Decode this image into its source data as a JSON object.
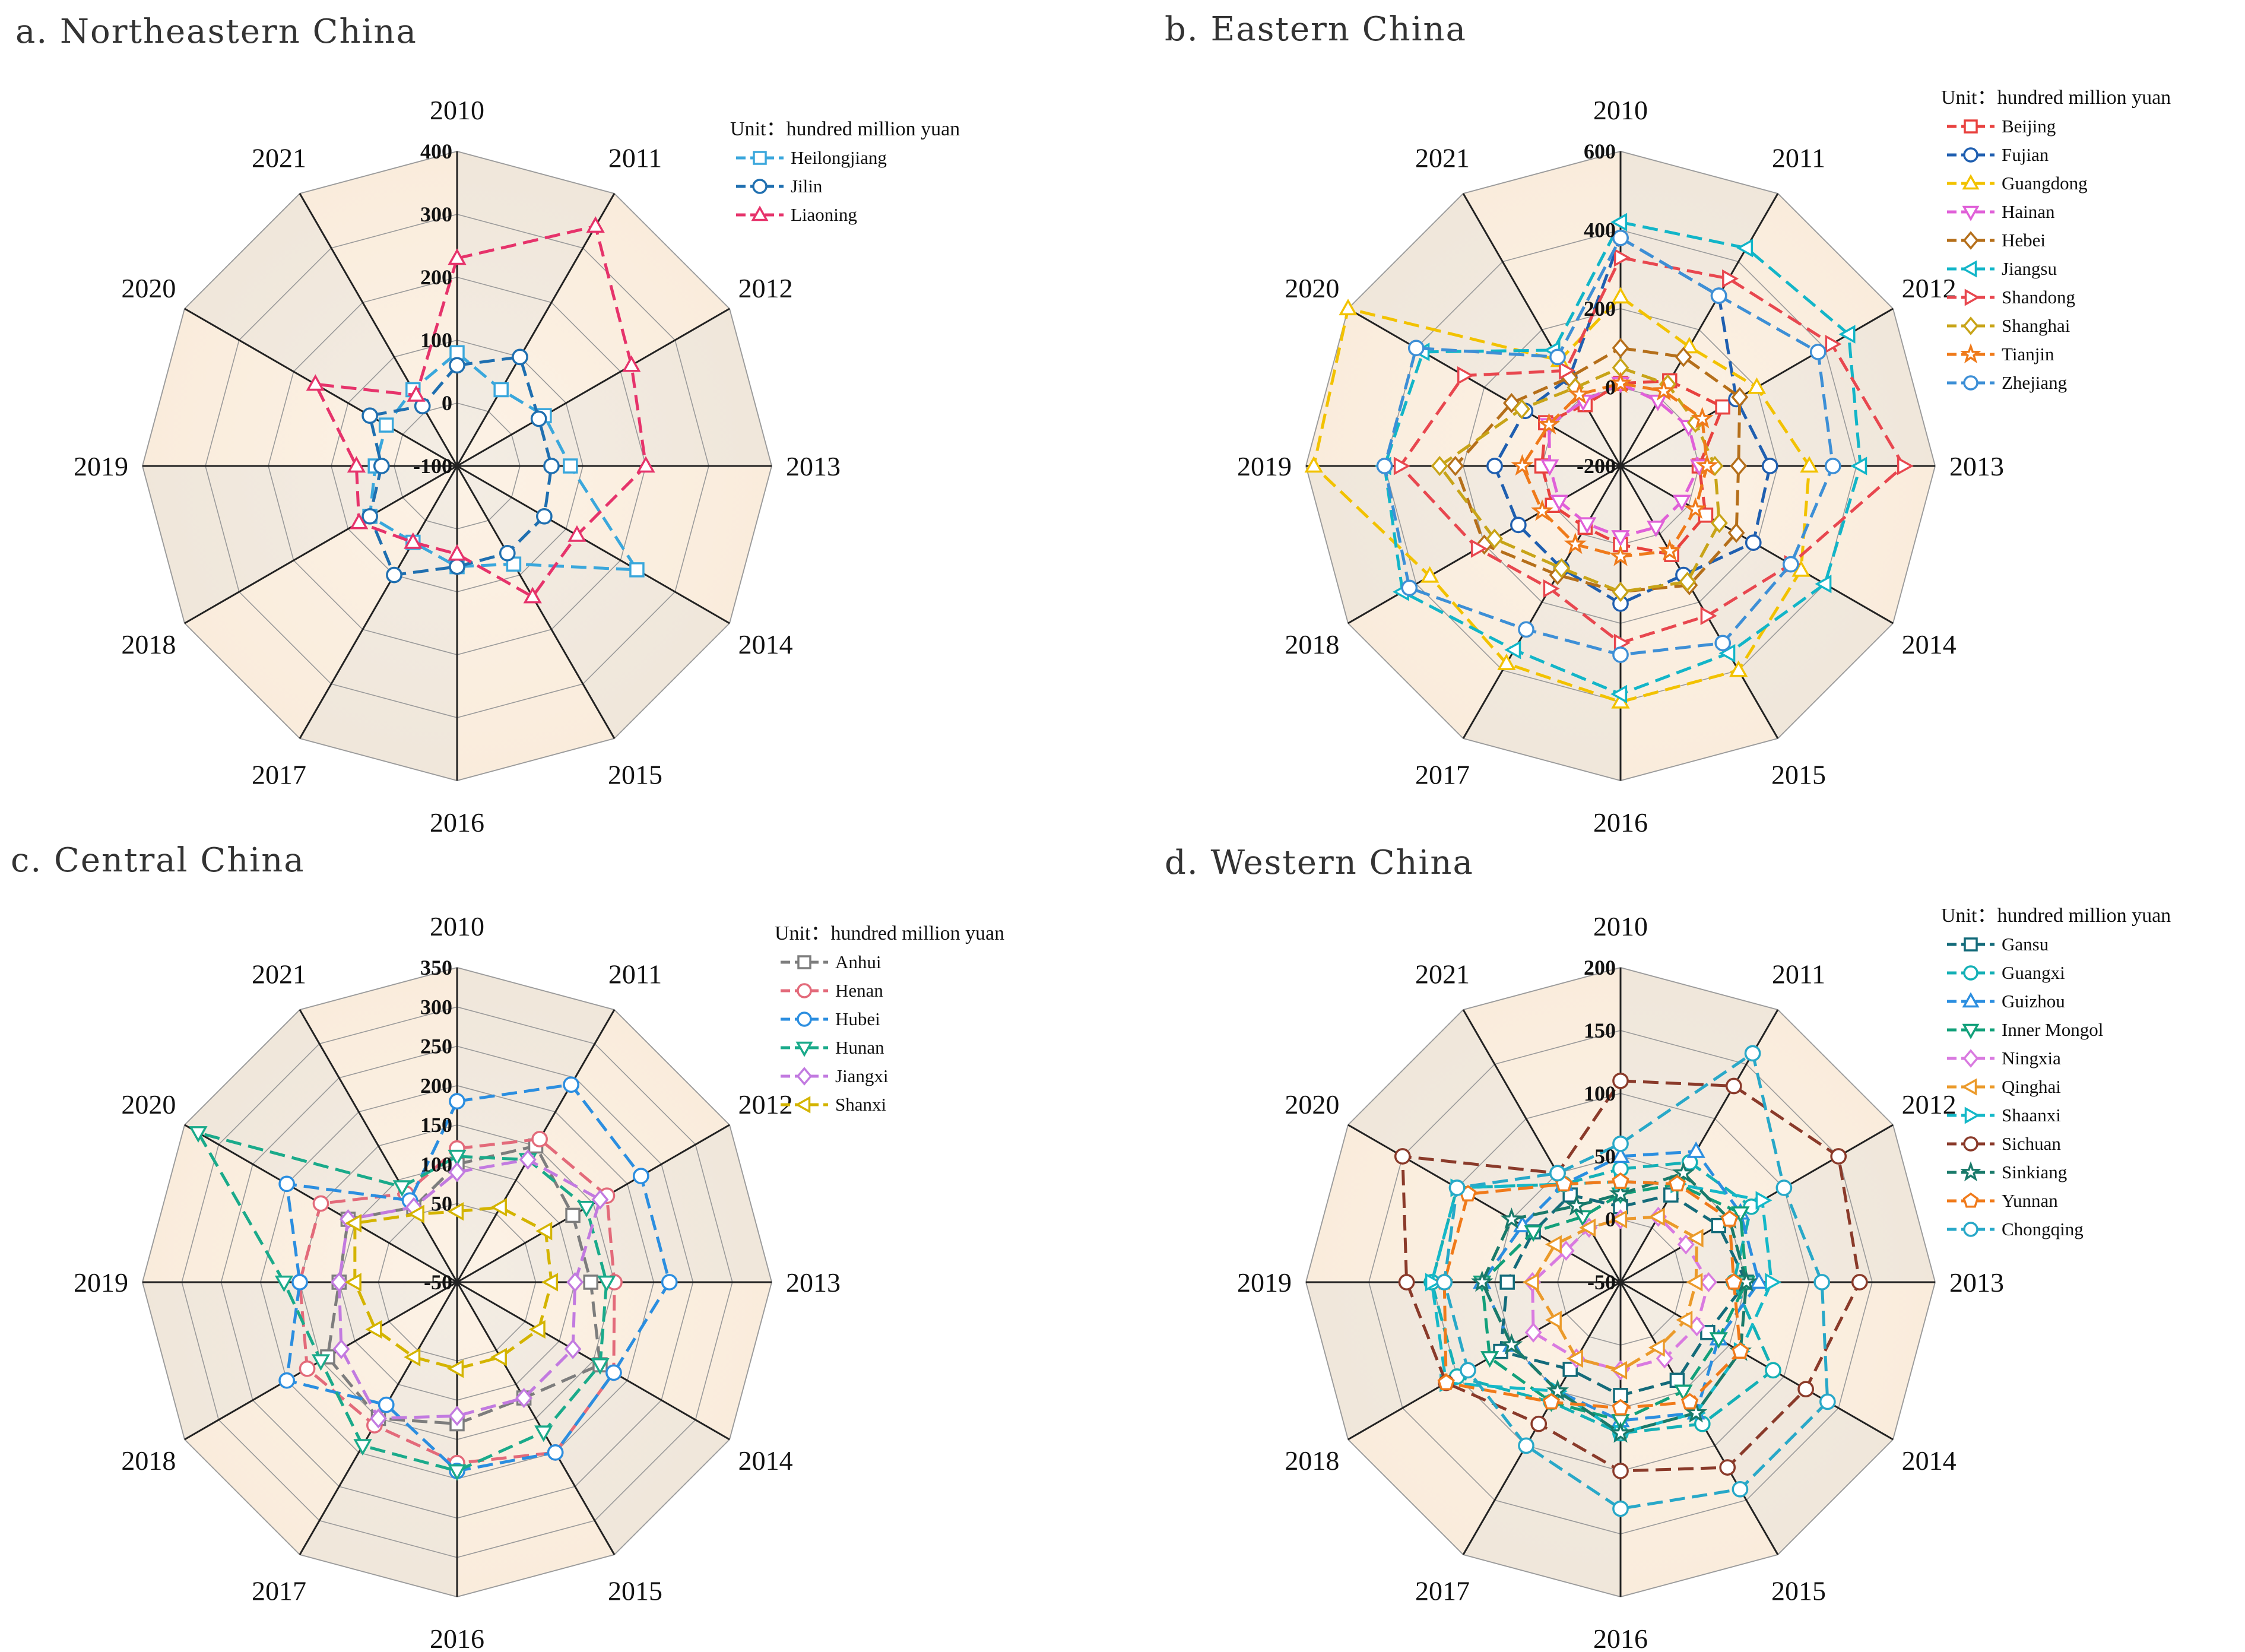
{
  "figure": {
    "colors": {
      "panel_fill_light": "#fbefe1",
      "panel_fill_dark": "#e8e3dd",
      "ring": "#9a9a9a",
      "spoke": "#222222"
    }
  },
  "chart_data": [
    {
      "type": "radar",
      "title": "a. Northeastern China",
      "legend_title": "Unit：hundred million yuan",
      "categories": [
        "2010",
        "2011",
        "2012",
        "2013",
        "2014",
        "2015",
        "2016",
        "2017",
        "2018",
        "2019",
        "2020",
        "2021"
      ],
      "rlim": [
        -100,
        400
      ],
      "ticks": [
        "400",
        "300",
        "200",
        "100",
        "0",
        "-100"
      ],
      "tick_values": [
        400,
        300,
        200,
        100,
        0,
        -100
      ],
      "series": [
        {
          "name": "Heilongjiang",
          "color": "#3aa7dc",
          "marker": "square",
          "values": [
            80,
            40,
            60,
            80,
            230,
            80,
            60,
            40,
            60,
            30,
            30,
            40
          ]
        },
        {
          "name": "Jilin",
          "color": "#1f6fb0",
          "marker": "circle",
          "values": [
            60,
            100,
            50,
            50,
            60,
            60,
            60,
            100,
            60,
            20,
            60,
            10
          ]
        },
        {
          "name": "Liaoning",
          "color": "#e6336b",
          "marker": "triangle",
          "values": [
            230,
            340,
            220,
            200,
            120,
            140,
            40,
            40,
            80,
            60,
            160,
            30
          ]
        }
      ]
    },
    {
      "type": "radar",
      "title": "b. Eastern China",
      "legend_title": "Unit：hundred million yuan",
      "categories": [
        "2010",
        "2011",
        "2012",
        "2013",
        "2014",
        "2015",
        "2016",
        "2017",
        "2018",
        "2019",
        "2020",
        "2021"
      ],
      "rlim": [
        -200,
        600
      ],
      "ticks": [
        "600",
        "400",
        "200",
        "0",
        "-200"
      ],
      "tick_values": [
        600,
        400,
        200,
        0,
        -200
      ],
      "series": [
        {
          "name": "Beijing",
          "color": "#e8423f",
          "marker": "square",
          "values": [
            10,
            50,
            100,
            0,
            50,
            60,
            0,
            -20,
            0,
            0,
            20,
            -20
          ]
        },
        {
          "name": "Fujian",
          "color": "#1f5fb0",
          "marker": "circle",
          "values": [
            380,
            300,
            140,
            180,
            190,
            120,
            150,
            100,
            100,
            120,
            80,
            60
          ]
        },
        {
          "name": "Guangdong",
          "color": "#f2c200",
          "marker": "triangle",
          "values": [
            230,
            150,
            200,
            280,
            330,
            400,
            400,
            380,
            360,
            580,
            600,
            110
          ]
        },
        {
          "name": "Hainan",
          "color": "#e060d8",
          "marker": "triangle-down",
          "values": [
            10,
            -10,
            0,
            0,
            -20,
            -20,
            -20,
            -30,
            -20,
            -20,
            10,
            -10
          ]
        },
        {
          "name": "Hebei",
          "color": "#b56f1a",
          "marker": "diamond",
          "values": [
            100,
            120,
            150,
            100,
            140,
            150,
            120,
            120,
            200,
            220,
            120,
            60
          ]
        },
        {
          "name": "Jiangsu",
          "color": "#12b5c8",
          "marker": "triangle-left",
          "values": [
            420,
            440,
            470,
            410,
            400,
            350,
            380,
            340,
            440,
            400,
            380,
            140
          ]
        },
        {
          "name": "Shandong",
          "color": "#e8474f",
          "marker": "triangle-right",
          "values": [
            330,
            350,
            420,
            520,
            300,
            240,
            250,
            160,
            220,
            360,
            260,
            80
          ]
        },
        {
          "name": "Shanghai",
          "color": "#c8a418",
          "marker": "diamond",
          "values": [
            50,
            40,
            20,
            40,
            90,
            140,
            120,
            100,
            170,
            260,
            90,
            30
          ]
        },
        {
          "name": "Tianjin",
          "color": "#ef7a1a",
          "marker": "star",
          "values": [
            10,
            20,
            40,
            20,
            20,
            50,
            30,
            30,
            30,
            50,
            10,
            10
          ]
        },
        {
          "name": "Zhejiang",
          "color": "#3d8fd6",
          "marker": "circle",
          "values": [
            380,
            300,
            380,
            340,
            300,
            320,
            280,
            280,
            420,
            400,
            400,
            120
          ]
        }
      ]
    },
    {
      "type": "radar",
      "title": "c. Central China",
      "legend_title": "Unit：hundred million yuan",
      "categories": [
        "2010",
        "2011",
        "2012",
        "2013",
        "2014",
        "2015",
        "2016",
        "2017",
        "2018",
        "2019",
        "2020",
        "2021"
      ],
      "rlim": [
        -50,
        350
      ],
      "ticks": [
        "350",
        "300",
        "250",
        "200",
        "150",
        "100",
        "50",
        "-50"
      ],
      "tick_values": [
        350,
        300,
        250,
        200,
        150,
        100,
        50,
        -50
      ],
      "series": [
        {
          "name": "Anhui",
          "color": "#7d7d7d",
          "marker": "square",
          "values": [
            100,
            150,
            120,
            120,
            160,
            120,
            130,
            150,
            140,
            100,
            110,
            60
          ]
        },
        {
          "name": "Henan",
          "color": "#e36a7a",
          "marker": "circle",
          "values": [
            120,
            160,
            170,
            150,
            180,
            200,
            180,
            160,
            170,
            150,
            150,
            80
          ]
        },
        {
          "name": "Hubei",
          "color": "#2b8ee0",
          "marker": "circle",
          "values": [
            180,
            240,
            220,
            220,
            180,
            200,
            190,
            130,
            200,
            150,
            200,
            70
          ]
        },
        {
          "name": "Hunan",
          "color": "#1aaa8a",
          "marker": "triangle-down",
          "values": [
            110,
            130,
            140,
            140,
            160,
            170,
            190,
            190,
            150,
            170,
            330,
            90
          ]
        },
        {
          "name": "Jiangxi",
          "color": "#c27ae0",
          "marker": "diamond",
          "values": [
            90,
            130,
            160,
            100,
            120,
            120,
            120,
            150,
            120,
            100,
            110,
            60
          ]
        },
        {
          "name": "Shanxi",
          "color": "#d4b400",
          "marker": "triangle-left",
          "values": [
            40,
            60,
            80,
            70,
            70,
            60,
            60,
            60,
            70,
            80,
            100,
            50
          ]
        }
      ]
    },
    {
      "type": "radar",
      "title": "d. Western China",
      "legend_title": "Unit：hundred  million yuan",
      "categories": [
        "2010",
        "2011",
        "2012",
        "2013",
        "2014",
        "2015",
        "2016",
        "2017",
        "2018",
        "2019",
        "2020",
        "2021"
      ],
      "rlim": [
        -50,
        200
      ],
      "ticks": [
        "200",
        "150",
        "100",
        "50",
        "0",
        "-50"
      ],
      "tick_values": [
        200,
        150,
        100,
        50,
        0,
        -50
      ],
      "series": [
        {
          "name": "Gansu",
          "color": "#146b7a",
          "marker": "square",
          "values": [
            10,
            30,
            40,
            50,
            30,
            40,
            40,
            30,
            60,
            40,
            30,
            30
          ]
        },
        {
          "name": "Guangxi",
          "color": "#14b0b6",
          "marker": "circle",
          "values": [
            40,
            60,
            70,
            40,
            90,
            80,
            70,
            60,
            100,
            100,
            100,
            40
          ]
        },
        {
          "name": "Guizhou",
          "color": "#2b8ee0",
          "marker": "triangle",
          "values": [
            50,
            70,
            60,
            60,
            40,
            70,
            60,
            50,
            50,
            60,
            40,
            40
          ]
        },
        {
          "name": "Inner Mongol",
          "color": "#12a07a",
          "marker": "triangle-down",
          "values": [
            20,
            40,
            60,
            50,
            40,
            50,
            60,
            60,
            70,
            60,
            30,
            10
          ]
        },
        {
          "name": "Ningxia",
          "color": "#d97ae0",
          "marker": "diamond",
          "values": [
            0,
            10,
            10,
            20,
            20,
            20,
            20,
            20,
            30,
            20,
            0,
            0
          ]
        },
        {
          "name": "Qinghai",
          "color": "#eb9a2a",
          "marker": "triangle-left",
          "values": [
            0,
            10,
            20,
            10,
            10,
            10,
            20,
            20,
            10,
            20,
            10,
            0
          ]
        },
        {
          "name": "Shaanxi",
          "color": "#14b8c8",
          "marker": "triangle-right",
          "values": [
            30,
            40,
            80,
            70,
            60,
            70,
            70,
            50,
            110,
            100,
            100,
            40
          ]
        },
        {
          "name": "Sichuan",
          "color": "#8a3a2a",
          "marker": "circle",
          "values": [
            110,
            130,
            150,
            140,
            120,
            120,
            100,
            80,
            110,
            120,
            150,
            50
          ]
        },
        {
          "name": "Sinkiang",
          "color": "#1a7a6a",
          "marker": "star",
          "values": [
            20,
            50,
            50,
            50,
            60,
            70,
            70,
            50,
            50,
            60,
            50,
            20
          ]
        },
        {
          "name": "Yunnan",
          "color": "#f07a1a",
          "marker": "pentagon",
          "values": [
            30,
            40,
            50,
            40,
            60,
            60,
            50,
            60,
            110,
            90,
            90,
            40
          ]
        },
        {
          "name": "Chongqing",
          "color": "#28a8c8",
          "marker": "circle",
          "values": [
            60,
            160,
            100,
            110,
            140,
            140,
            130,
            100,
            90,
            90,
            100,
            50
          ]
        }
      ]
    }
  ]
}
